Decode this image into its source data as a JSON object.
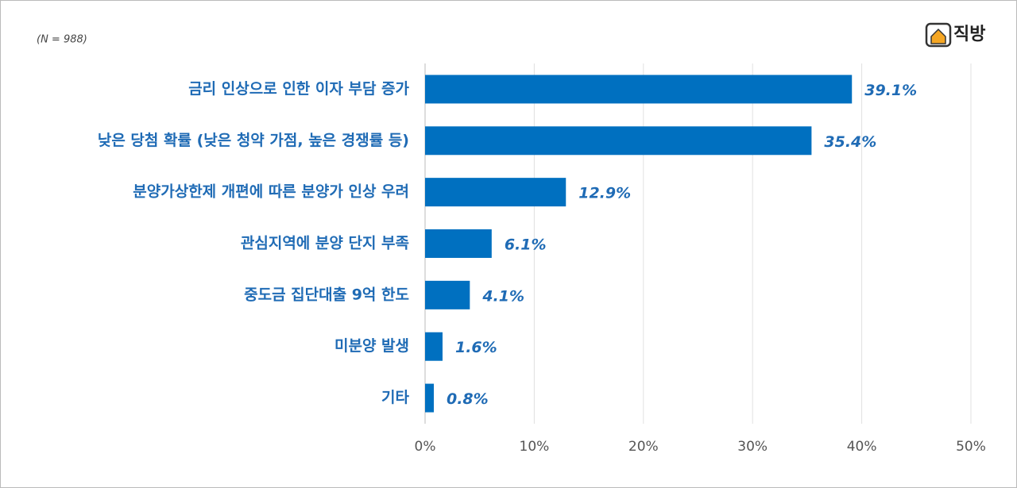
{
  "chart_data": {
    "type": "bar",
    "orientation": "horizontal",
    "note": "(N = 988)",
    "logo_text": "직방",
    "categories": [
      "금리 인상으로 인한 이자 부담 증가",
      "낮은 당첨 확률 (낮은 청약 가점, 높은 경쟁률 등)",
      "분양가상한제 개편에 따른 분양가 인상 우려",
      "관심지역에 분양 단지 부족",
      "중도금 집단대출 9억 한도",
      "미분양 발생",
      "기타"
    ],
    "values": [
      39.1,
      35.4,
      12.9,
      6.1,
      4.1,
      1.6,
      0.8
    ],
    "value_labels": [
      "39.1%",
      "35.4%",
      "12.9%",
      "6.1%",
      "4.1%",
      "1.6%",
      "0.8%"
    ],
    "color": "#0070c0",
    "xlim": [
      0,
      50
    ],
    "xticks": [
      {
        "value": 0,
        "label": "0%"
      },
      {
        "value": 10,
        "label": "10%"
      },
      {
        "value": 20,
        "label": "20%"
      },
      {
        "value": 30,
        "label": "30%"
      },
      {
        "value": 40,
        "label": "40%"
      },
      {
        "value": 50,
        "label": "50%"
      }
    ],
    "grid": true
  }
}
